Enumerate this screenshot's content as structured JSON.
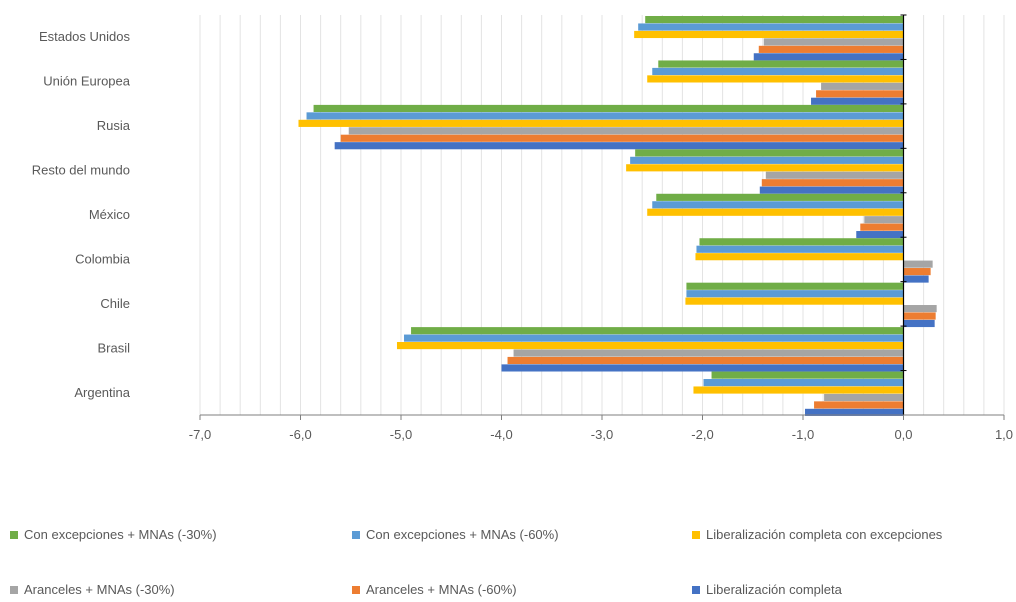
{
  "chart_data": {
    "type": "bar",
    "orientation": "horizontal",
    "title": "",
    "xlabel": "",
    "ylabel": "",
    "xlim": [
      -7,
      1
    ],
    "x_ticks": [
      "-7,0",
      "-6,0",
      "-5,0",
      "-4,0",
      "-3,0",
      "-2,0",
      "-1,0",
      "0,0",
      "1,0"
    ],
    "grid": true,
    "legend_position": "bottom",
    "categories": [
      "Estados Unidos",
      "Unión Europea",
      "Rusia",
      "Resto del mundo",
      "México",
      "Colombia",
      "Chile",
      "Brasil",
      "Argentina"
    ],
    "series": [
      {
        "name": "Con excepciones + MNAs (-30%)",
        "color": "#70AD47",
        "values": [
          -2.57,
          -2.44,
          -5.87,
          -2.67,
          -2.46,
          -2.03,
          -2.16,
          -4.9,
          -1.91
        ]
      },
      {
        "name": "Con excepciones + MNAs (-60%)",
        "color": "#5B9BD5",
        "values": [
          -2.64,
          -2.5,
          -5.94,
          -2.72,
          -2.5,
          -2.06,
          -2.16,
          -4.97,
          -1.99
        ]
      },
      {
        "name": "Liberalización completa con excepciones",
        "color": "#FFC000",
        "values": [
          -2.68,
          -2.55,
          -6.02,
          -2.76,
          -2.55,
          -2.07,
          -2.17,
          -5.04,
          -2.09
        ]
      },
      {
        "name": "Aranceles + MNAs (-30%)",
        "color": "#A5A5A5",
        "values": [
          -1.39,
          -0.82,
          -5.52,
          -1.37,
          -0.39,
          0.29,
          0.33,
          -3.88,
          -0.79
        ]
      },
      {
        "name": "Aranceles + MNAs (-60%)",
        "color": "#ED7D31",
        "values": [
          -1.44,
          -0.87,
          -5.6,
          -1.41,
          -0.43,
          0.27,
          0.32,
          -3.94,
          -0.89
        ]
      },
      {
        "name": "Liberalización completa",
        "color": "#4472C4",
        "values": [
          -1.49,
          -0.92,
          -5.66,
          -1.43,
          -0.47,
          0.25,
          0.31,
          -4.0,
          -0.98
        ]
      }
    ]
  }
}
